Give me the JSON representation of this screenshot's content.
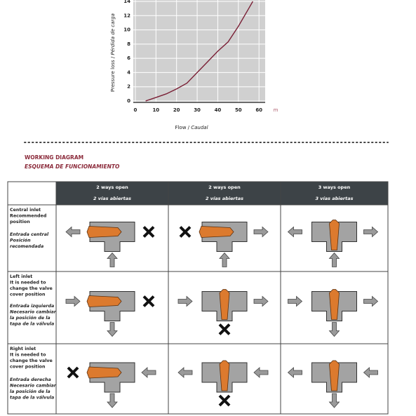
{
  "chart_data": {
    "type": "line",
    "y_label": "Pressure loss /",
    "y_label_es": "Pérdida de carga",
    "x_label": "Flow /",
    "x_label_es": "Caudal",
    "x_unit": "m",
    "color": "#7a1f35",
    "x": [
      5,
      10,
      15,
      20,
      25,
      30,
      35,
      40,
      45,
      50,
      55,
      57
    ],
    "values": [
      0,
      0.5,
      1,
      1.7,
      2.5,
      4,
      5.5,
      7,
      8.3,
      10.5,
      13,
      14
    ],
    "xlim": [
      -1,
      63
    ],
    "ylim": [
      -0.2,
      14.2
    ],
    "xticks": [
      0,
      10,
      20,
      30,
      40,
      50,
      60
    ],
    "yticks": [
      0,
      2,
      4,
      6,
      8,
      10,
      12,
      14
    ],
    "grid": true
  },
  "section": {
    "title": "WORKING DIAGRAM",
    "subtitle": "ESQUEMA DE FUNCIONAMIENTO"
  },
  "table": {
    "columns": [
      {
        "title": "2 ways open",
        "subtitle": "2 vías abiertas"
      },
      {
        "title": "2 ways open",
        "subtitle": "2 vías abiertas"
      },
      {
        "title": "3 ways open",
        "subtitle": "3 vías abiertas"
      }
    ],
    "rows": [
      {
        "label": [
          "Central inlet",
          "Recommended",
          "position"
        ],
        "label_es": [
          "Entrada central",
          "Posición",
          "recomendada"
        ]
      },
      {
        "label": [
          "Left inlet",
          "It is needed to",
          "change the valve",
          "cover position"
        ],
        "label_es": [
          "Entrada izquierda",
          "Necesario cambiar",
          "la posición de la",
          "tapa de la válvula"
        ]
      },
      {
        "label": [
          "Right inlet",
          "It is needed to",
          "change the valve",
          "cover position"
        ],
        "label_es": [
          "Entrada derecha",
          "Necesario cambiar",
          "la posición de la",
          "tapa de la válvula"
        ]
      }
    ]
  }
}
